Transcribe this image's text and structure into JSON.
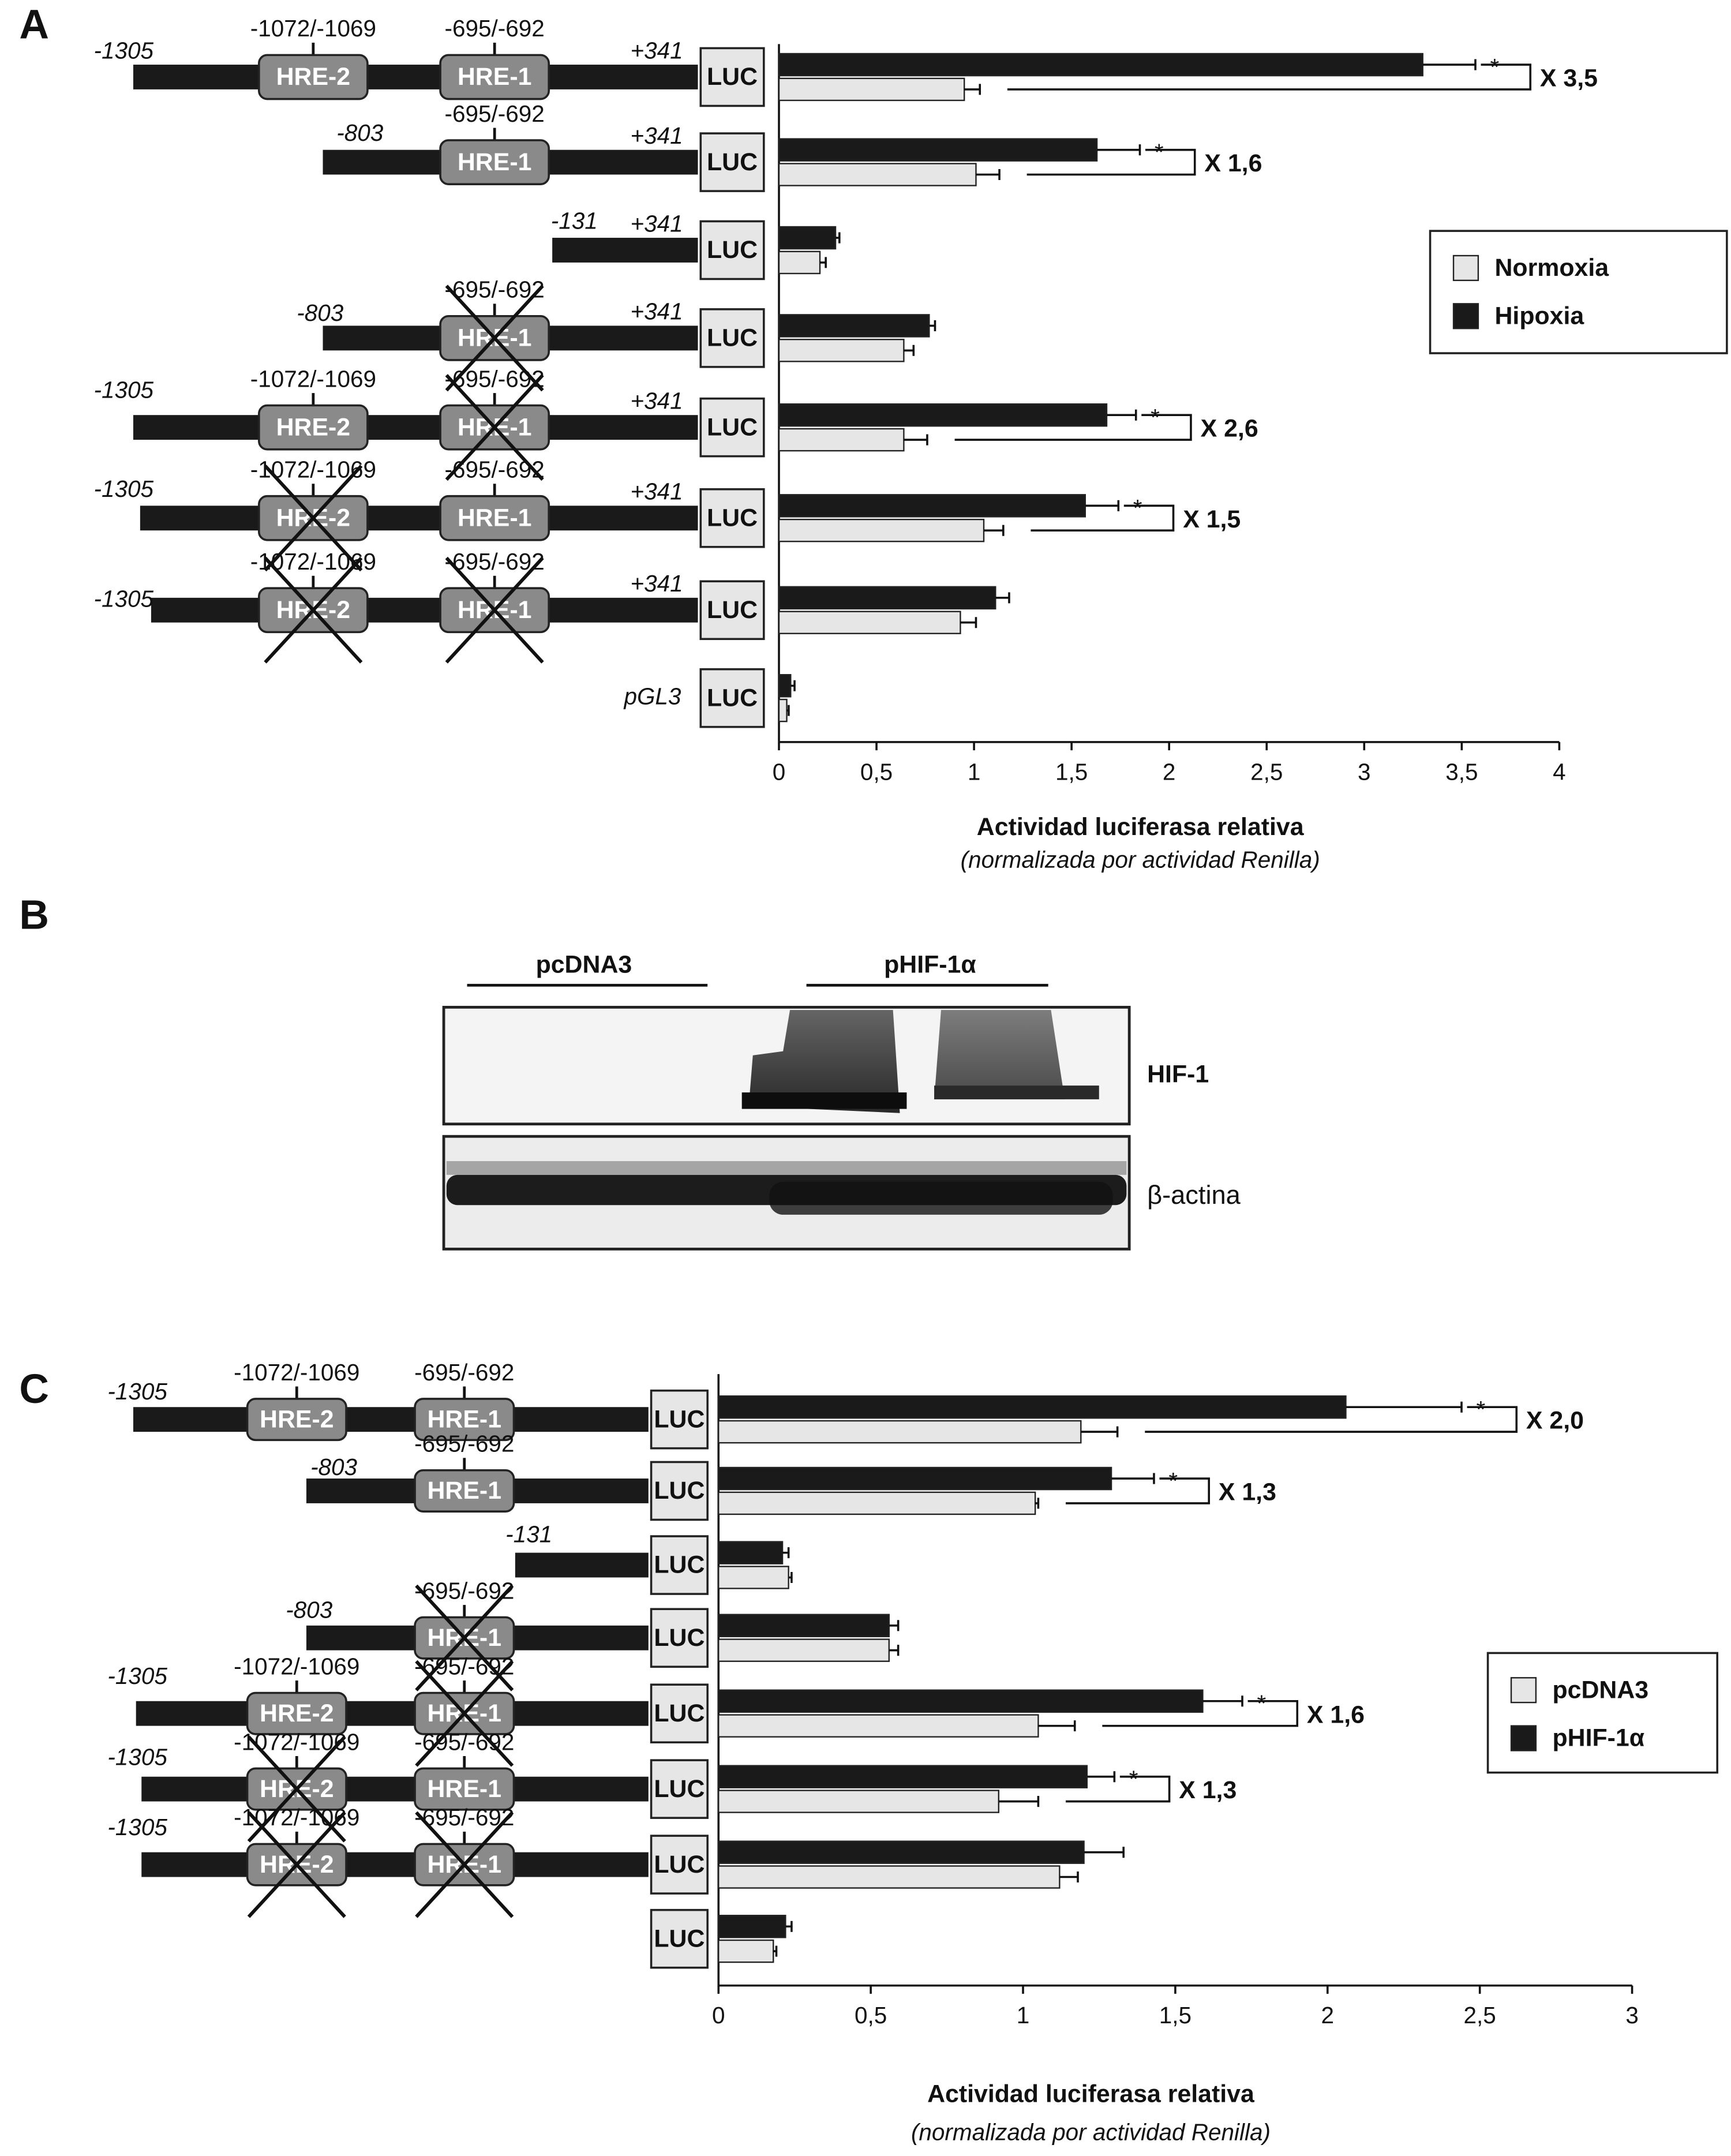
{
  "chart_data": [
    {
      "type": "bar",
      "orientation": "horizontal",
      "panel": "A",
      "categories": [
        null,
        null,
        null,
        null,
        null,
        null,
        null,
        null
      ],
      "series": [
        {
          "name": "Normoxia",
          "color": "#e6e6e6",
          "values": [
            0.95,
            1.01,
            0.21,
            0.64,
            0.64,
            1.05,
            0.93,
            0.04
          ],
          "errors": [
            0.08,
            0.12,
            0.03,
            0.05,
            0.12,
            0.1,
            0.08,
            0.01
          ]
        },
        {
          "name": "Hipoxia",
          "color": "#1a1a1a",
          "values": [
            3.3,
            1.63,
            0.29,
            0.77,
            1.68,
            1.57,
            1.11,
            0.06
          ],
          "errors": [
            0.27,
            0.22,
            0.02,
            0.03,
            0.15,
            0.17,
            0.07,
            0.02
          ]
        }
      ],
      "significance": [
        "*",
        "*",
        null,
        null,
        "*",
        "*",
        null,
        null
      ],
      "fold_labels": [
        "X 3,5",
        "X 1,6",
        null,
        null,
        "X 2,6",
        "X 1,5",
        null,
        null
      ],
      "xlim": [
        0,
        4
      ],
      "xticks": [
        0,
        {
          "value": 0.5,
          "label": "0,5"
        },
        1,
        {
          "value": 1.5,
          "label": "1,5"
        },
        2,
        {
          "value": 2.5,
          "label": "2,5"
        },
        3,
        {
          "value": 3.5,
          "label": "3,5"
        },
        4
      ],
      "xlabel": "Actividad luciferasa relativa",
      "xlabel_note": "(normalizada por actividad Renilla)",
      "constructs": [
        {
          "start": "-1305",
          "end": "+341",
          "reporter": "LUC",
          "elements": [
            {
              "name": "HRE-2",
              "position": "-1072/-1069",
              "mutated": false
            },
            {
              "name": "HRE-1",
              "position": "-695/-692",
              "mutated": false
            }
          ]
        },
        {
          "start": "-803",
          "end": "+341",
          "reporter": "LUC",
          "elements": [
            null,
            {
              "name": "HRE-1",
              "position": "-695/-692",
              "mutated": false
            }
          ]
        },
        {
          "start": "-131",
          "end": "+341",
          "reporter": "LUC",
          "elements": [
            null,
            null
          ]
        },
        {
          "start": "-803",
          "end": "+341",
          "reporter": "LUC",
          "elements": [
            null,
            {
              "name": "HRE-1",
              "position": "-695/-692",
              "mutated": true
            }
          ]
        },
        {
          "start": "-1305",
          "end": "+341",
          "reporter": "LUC",
          "elements": [
            {
              "name": "HRE-2",
              "position": "-1072/-1069",
              "mutated": false
            },
            {
              "name": "HRE-1",
              "position": "-695/-692",
              "mutated": true
            }
          ]
        },
        {
          "start": "-1305",
          "end": "+341",
          "reporter": "LUC",
          "elements": [
            {
              "name": "HRE-2",
              "position": "-1072/-1069",
              "mutated": true
            },
            {
              "name": "HRE-1",
              "position": "-695/-692",
              "mutated": false
            }
          ]
        },
        {
          "start": "-1305",
          "end": "+341",
          "reporter": "LUC",
          "elements": [
            {
              "name": "HRE-2",
              "position": "-1072/-1069",
              "mutated": true
            },
            {
              "name": "HRE-1",
              "position": "-695/-692",
              "mutated": true
            }
          ]
        },
        {
          "vector": "pGL3",
          "reporter": "LUC",
          "elements": [
            null,
            null
          ]
        }
      ]
    },
    {
      "type": "bar",
      "orientation": "horizontal",
      "panel": "C",
      "categories": [
        null,
        null,
        null,
        null,
        null,
        null,
        null,
        null
      ],
      "series": [
        {
          "name": "pcDNA3",
          "color": "#e6e6e6",
          "values": [
            1.19,
            1.04,
            0.23,
            0.56,
            1.05,
            0.92,
            1.12,
            0.18
          ],
          "errors": [
            0.12,
            0.01,
            0.01,
            0.03,
            0.12,
            0.13,
            0.06,
            0.01
          ]
        },
        {
          "name": "pHIF-1α",
          "color": "#1a1a1a",
          "values": [
            2.06,
            1.29,
            0.21,
            0.56,
            1.59,
            1.21,
            1.2,
            0.22
          ],
          "errors": [
            0.38,
            0.14,
            0.02,
            0.03,
            0.13,
            0.09,
            0.13,
            0.02
          ]
        }
      ],
      "significance": [
        "*",
        "*",
        null,
        null,
        "*",
        "*",
        null,
        null
      ],
      "fold_labels": [
        "X 2,0",
        "X 1,3",
        null,
        null,
        "X 1,6",
        "X 1,3",
        null,
        null
      ],
      "xlim": [
        0,
        3
      ],
      "xticks": [
        0,
        {
          "value": 0.5,
          "label": "0,5"
        },
        1,
        {
          "value": 1.5,
          "label": "1,5"
        },
        2,
        {
          "value": 2.5,
          "label": "2,5"
        },
        3
      ],
      "xlabel": "Actividad luciferasa relativa",
      "xlabel_note": "(normalizada por actividad Renilla)",
      "constructs": [
        {
          "start": "-1305",
          "reporter": "LUC",
          "elements": [
            {
              "name": "HRE-2",
              "position": "-1072/-1069",
              "mutated": false
            },
            {
              "name": "HRE-1",
              "position": "-695/-692",
              "mutated": false
            }
          ]
        },
        {
          "start": "-803",
          "reporter": "LUC",
          "elements": [
            null,
            {
              "name": "HRE-1",
              "position": "-695/-692",
              "mutated": false
            }
          ]
        },
        {
          "start": "-131",
          "reporter": "LUC",
          "elements": [
            null,
            null
          ]
        },
        {
          "start": "-803",
          "reporter": "LUC",
          "elements": [
            null,
            {
              "name": "HRE-1",
              "position": "-695/-692",
              "mutated": true
            }
          ]
        },
        {
          "start": "-1305",
          "reporter": "LUC",
          "elements": [
            {
              "name": "HRE-2",
              "position": "-1072/-1069",
              "mutated": false
            },
            {
              "name": "HRE-1",
              "position": "-695/-692",
              "mutated": true
            }
          ]
        },
        {
          "start": "-1305",
          "reporter": "LUC",
          "elements": [
            {
              "name": "HRE-2",
              "position": "-1072/-1069",
              "mutated": true
            },
            {
              "name": "HRE-1",
              "position": "-695/-692",
              "mutated": false
            }
          ]
        },
        {
          "start": "-1305",
          "reporter": "LUC",
          "elements": [
            {
              "name": "HRE-2",
              "position": "-1072/-1069",
              "mutated": true
            },
            {
              "name": "HRE-1",
              "position": "-695/-692",
              "mutated": true
            }
          ]
        },
        {
          "reporter": "LUC",
          "elements": [
            null,
            null
          ]
        }
      ]
    }
  ],
  "blot": {
    "panel": "B",
    "lanes": [
      "pcDNA3",
      "pHIF-1α"
    ],
    "bands": [
      "HIF-1",
      "β-actina"
    ]
  }
}
